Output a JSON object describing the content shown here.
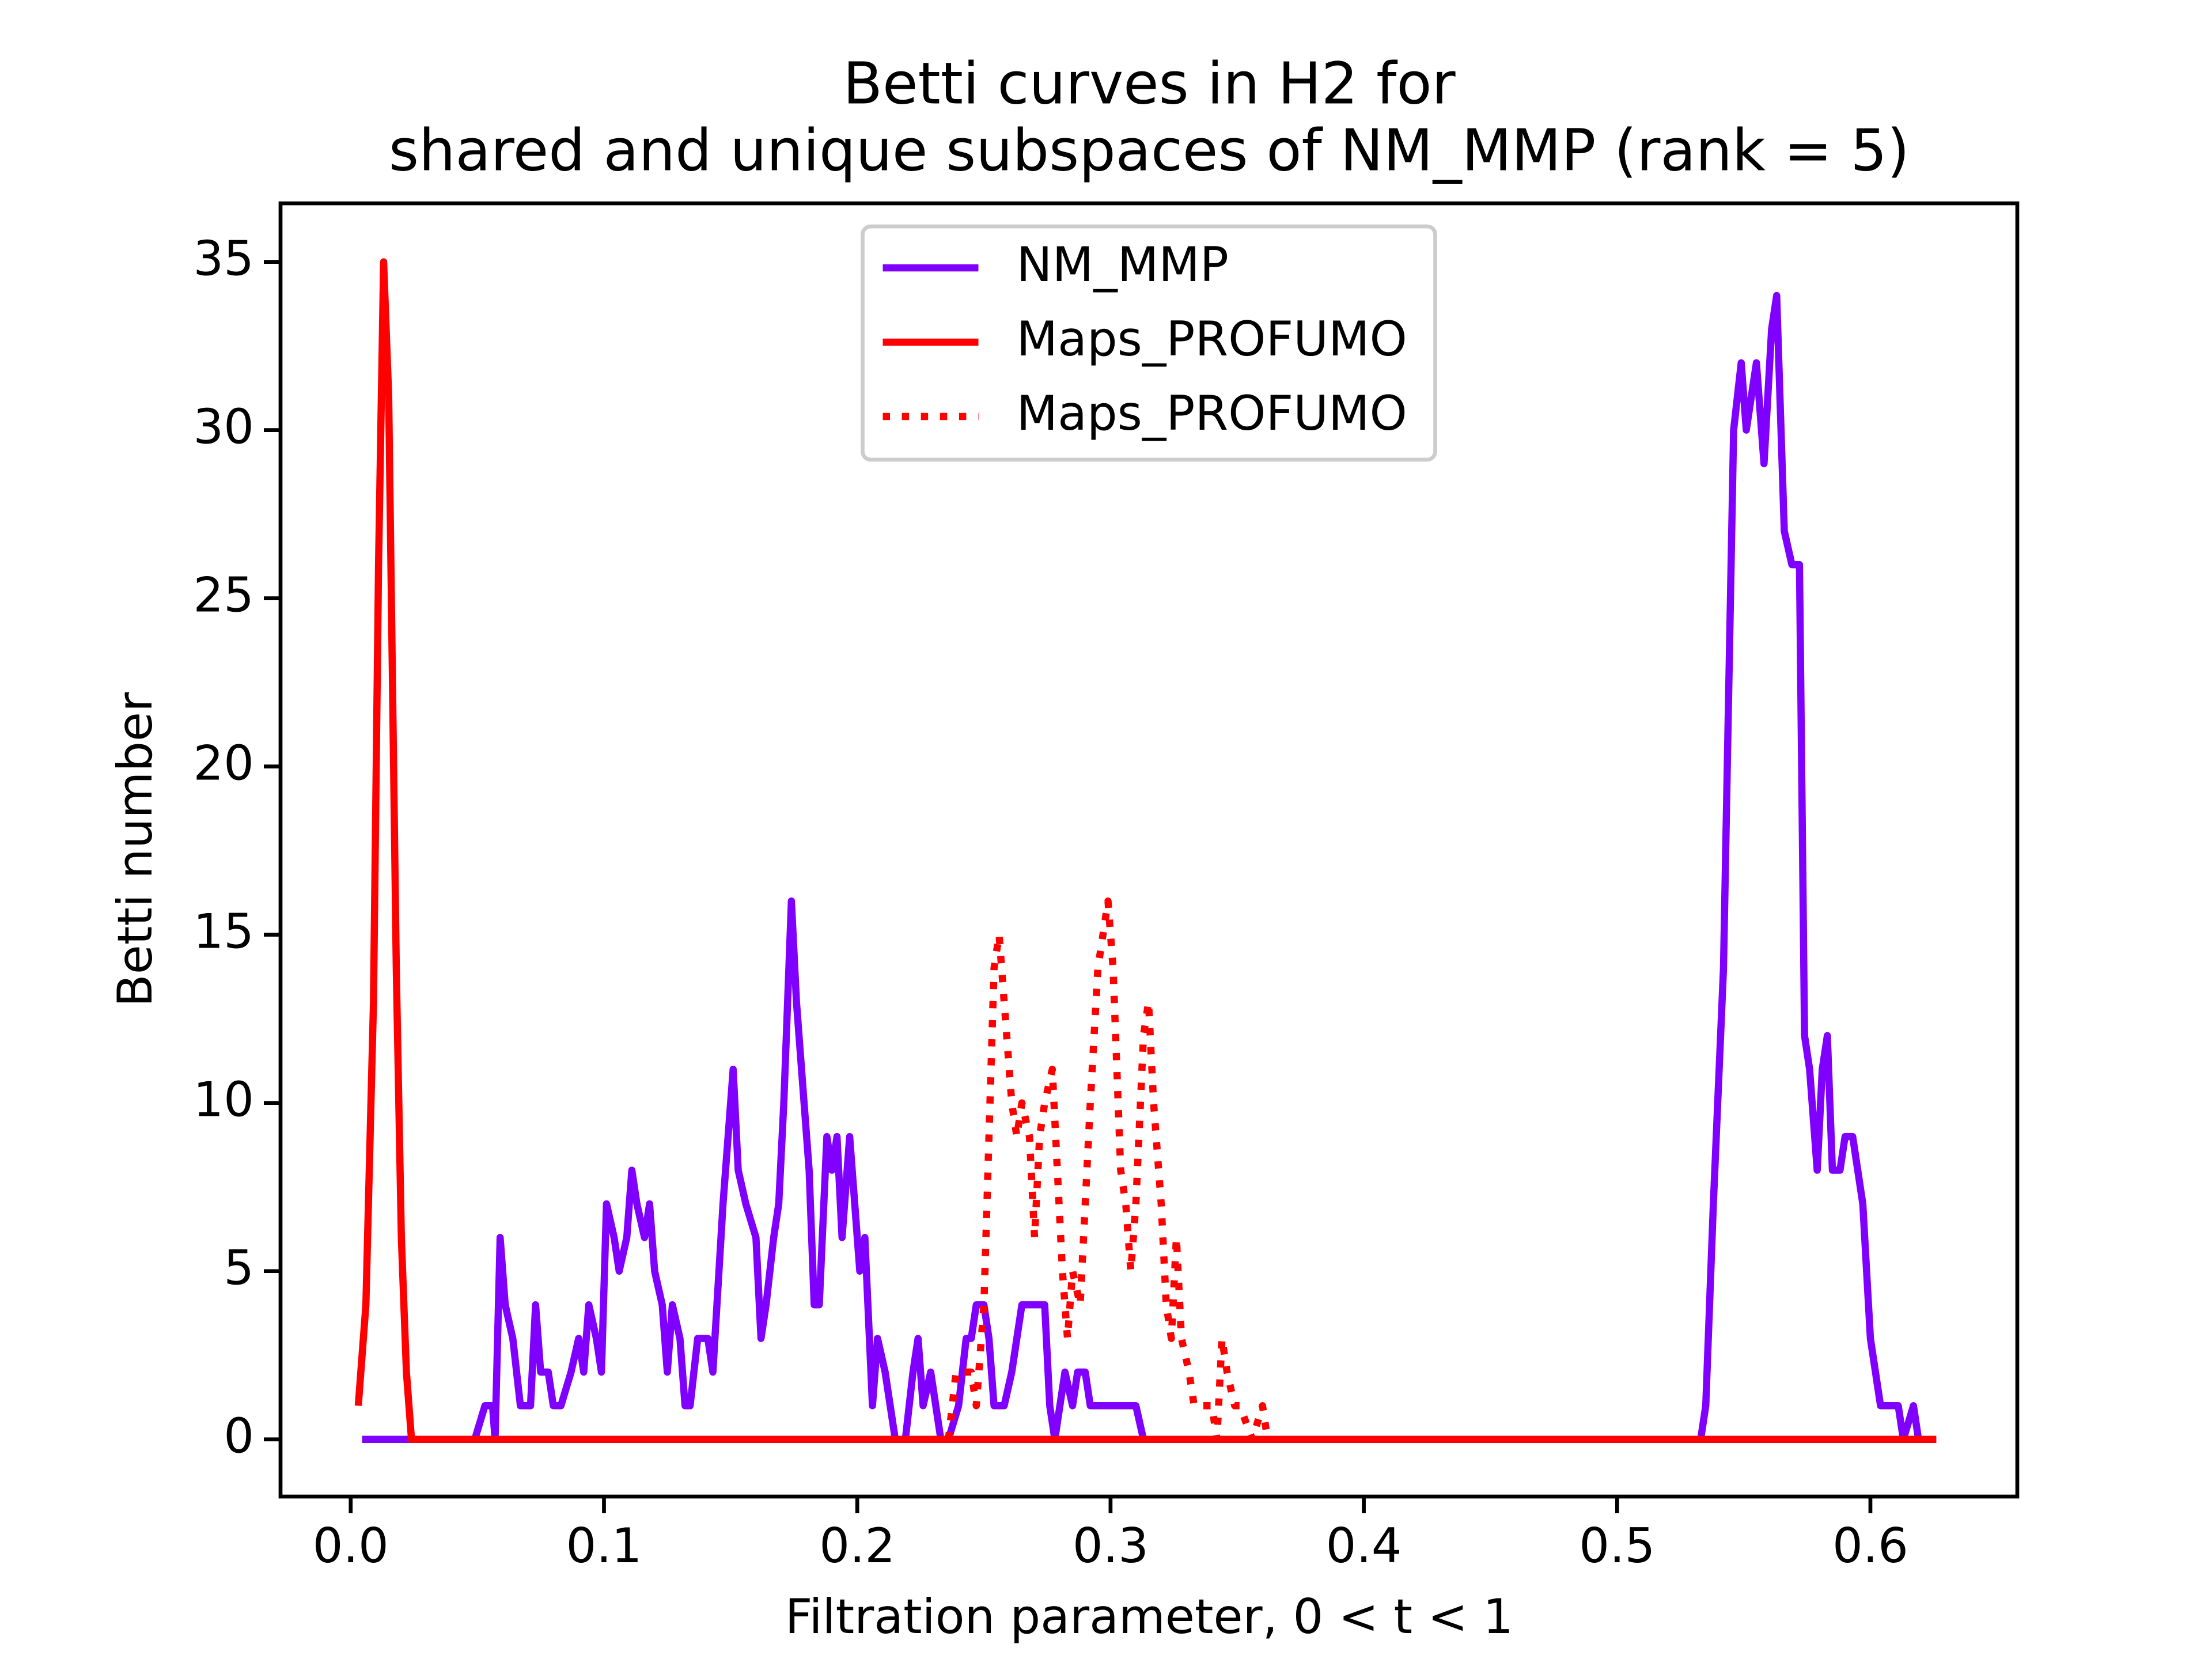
{
  "chart_data": {
    "type": "line",
    "title": [
      "Betti curves in H2 for",
      "shared and unique subspaces of NM_MMP (rank = 5)"
    ],
    "xlabel": "Filtration parameter, 0 < t < 1",
    "ylabel": "Betti number",
    "xlim": [
      -0.0277,
      0.658
    ],
    "ylim": [
      -1.7,
      36.74
    ],
    "xticks": [
      {
        "value": 0,
        "label": "0.0"
      },
      0.1,
      0.2,
      0.3,
      0.4,
      0.5,
      0.6
    ],
    "yticks": [
      0,
      5,
      10,
      15,
      20,
      25,
      30,
      35
    ],
    "legend": "upper center",
    "series": [
      {
        "name": "NM_MMP",
        "color": "#7f00ff",
        "style": "solid",
        "x": [
          0.0045,
          0.049,
          0.053,
          0.056,
          0.057,
          0.059,
          0.061,
          0.064,
          0.067,
          0.071,
          0.073,
          0.075,
          0.078,
          0.08,
          0.083,
          0.087,
          0.09,
          0.092,
          0.094,
          0.097,
          0.099,
          0.101,
          0.104,
          0.106,
          0.109,
          0.111,
          0.113,
          0.116,
          0.118,
          0.12,
          0.123,
          0.125,
          0.127,
          0.13,
          0.132,
          0.134,
          0.137,
          0.141,
          0.143,
          0.147,
          0.151,
          0.153,
          0.156,
          0.16,
          0.162,
          0.164,
          0.167,
          0.169,
          0.171,
          0.174,
          0.176,
          0.178,
          0.181,
          0.183,
          0.185,
          0.188,
          0.19,
          0.192,
          0.194,
          0.197,
          0.199,
          0.201,
          0.203,
          0.206,
          0.208,
          0.211,
          0.215,
          0.219,
          0.222,
          0.224,
          0.226,
          0.229,
          0.233,
          0.236,
          0.24,
          0.243,
          0.245,
          0.247,
          0.25,
          0.252,
          0.254,
          0.258,
          0.261,
          0.265,
          0.27,
          0.274,
          0.276,
          0.278,
          0.282,
          0.285,
          0.287,
          0.29,
          0.292,
          0.31,
          0.313,
          0.533,
          0.535,
          0.538,
          0.542,
          0.546,
          0.549,
          0.551,
          0.555,
          0.558,
          0.561,
          0.563,
          0.566,
          0.569,
          0.572,
          0.574,
          0.576,
          0.579,
          0.581,
          0.583,
          0.585,
          0.588,
          0.59,
          0.593,
          0.597,
          0.6,
          0.604,
          0.611,
          0.613,
          0.617,
          0.619,
          0.626
        ],
        "values": [
          0,
          0,
          1,
          1,
          0,
          6,
          4,
          3,
          1,
          1,
          4,
          2,
          2,
          1,
          1,
          2,
          3,
          2,
          4,
          3,
          2,
          7,
          6,
          5,
          6,
          8,
          7,
          6,
          7,
          5,
          4,
          2,
          4,
          3,
          1,
          1,
          3,
          3,
          2,
          7,
          11,
          8,
          7,
          6,
          3,
          4,
          6,
          7,
          10,
          16,
          13,
          11,
          8,
          4,
          4,
          9,
          8,
          9,
          6,
          9,
          7,
          5,
          6,
          1,
          3,
          2,
          0,
          0,
          2,
          3,
          1,
          2,
          0,
          0,
          1,
          3,
          3,
          4,
          4,
          3,
          1,
          1,
          2,
          4,
          4,
          4,
          1,
          0,
          2,
          1,
          2,
          2,
          1,
          1,
          0,
          0,
          1,
          7,
          14,
          30,
          32,
          30,
          32,
          29,
          33,
          34,
          27,
          26,
          26,
          12,
          11,
          8,
          11,
          12,
          8,
          8,
          9,
          9,
          7,
          3,
          1,
          1,
          0,
          1,
          0,
          0
        ]
      },
      {
        "name": "Maps_PROFUMO",
        "color": "#ff0000",
        "style": "solid",
        "x": [
          0.003,
          0.006,
          0.009,
          0.011,
          0.013,
          0.015,
          0.018,
          0.02,
          0.022,
          0.024,
          0.626
        ],
        "values": [
          1,
          4,
          13,
          26,
          35,
          31,
          14,
          6,
          2,
          0,
          0
        ]
      },
      {
        "name": "Maps_PROFUMO",
        "color": "#ff0000",
        "style": "dotted",
        "x": [
          0.236,
          0.239,
          0.243,
          0.245,
          0.247,
          0.25,
          0.252,
          0.254,
          0.256,
          0.258,
          0.261,
          0.263,
          0.265,
          0.268,
          0.27,
          0.272,
          0.274,
          0.277,
          0.279,
          0.281,
          0.283,
          0.285,
          0.288,
          0.29,
          0.292,
          0.295,
          0.297,
          0.299,
          0.301,
          0.304,
          0.306,
          0.308,
          0.31,
          0.313,
          0.315,
          0.317,
          0.32,
          0.322,
          0.324,
          0.326,
          0.328,
          0.331,
          0.333,
          0.335,
          0.337,
          0.34,
          0.342,
          0.344,
          0.346,
          0.349,
          0.351,
          0.356,
          0.36,
          0.362
        ],
        "values": [
          0,
          2,
          2,
          2,
          1,
          4,
          9,
          14,
          15,
          13,
          10,
          9,
          10,
          9,
          6,
          9,
          10,
          11,
          8,
          5,
          3,
          5,
          4,
          7,
          10,
          14,
          15,
          16,
          14,
          8,
          7,
          5,
          7,
          12,
          13,
          10,
          7,
          4,
          3,
          6,
          3,
          2,
          1,
          1,
          1,
          1,
          0,
          3,
          2,
          1,
          1,
          0,
          1,
          0
        ]
      }
    ]
  }
}
